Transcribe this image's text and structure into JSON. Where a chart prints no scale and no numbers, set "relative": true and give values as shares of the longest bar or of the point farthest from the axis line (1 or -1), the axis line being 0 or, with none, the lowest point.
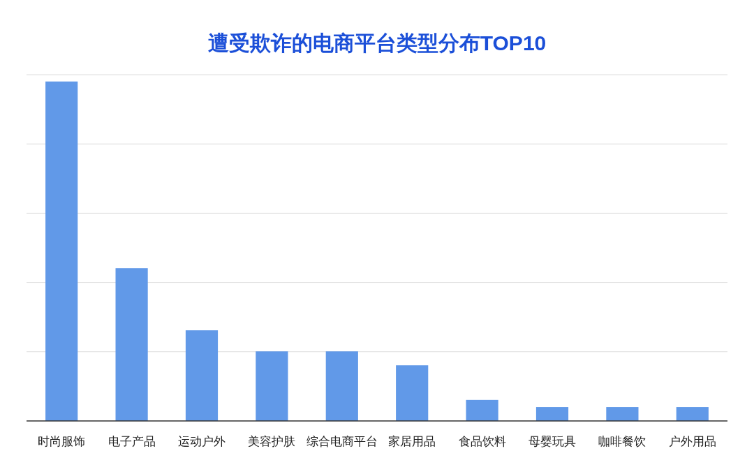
{
  "chart_data": {
    "type": "bar",
    "title": "遭受欺诈的电商平台类型分布TOP10",
    "relative": true,
    "grid": "y",
    "categories": [
      "时尚服饰",
      "电子产品",
      "运动户外",
      "美容护肤",
      "综合电商平台",
      "家居用品",
      "食品饮料",
      "母婴玩具",
      "咖啡餐饮",
      "户外用品"
    ],
    "series": [
      {
        "color": "#6199e8",
        "values": [
          1,
          0.45,
          0.267,
          0.205,
          0.205,
          0.164,
          0.062,
          0.041,
          0.041,
          0.041
        ]
      }
    ]
  }
}
